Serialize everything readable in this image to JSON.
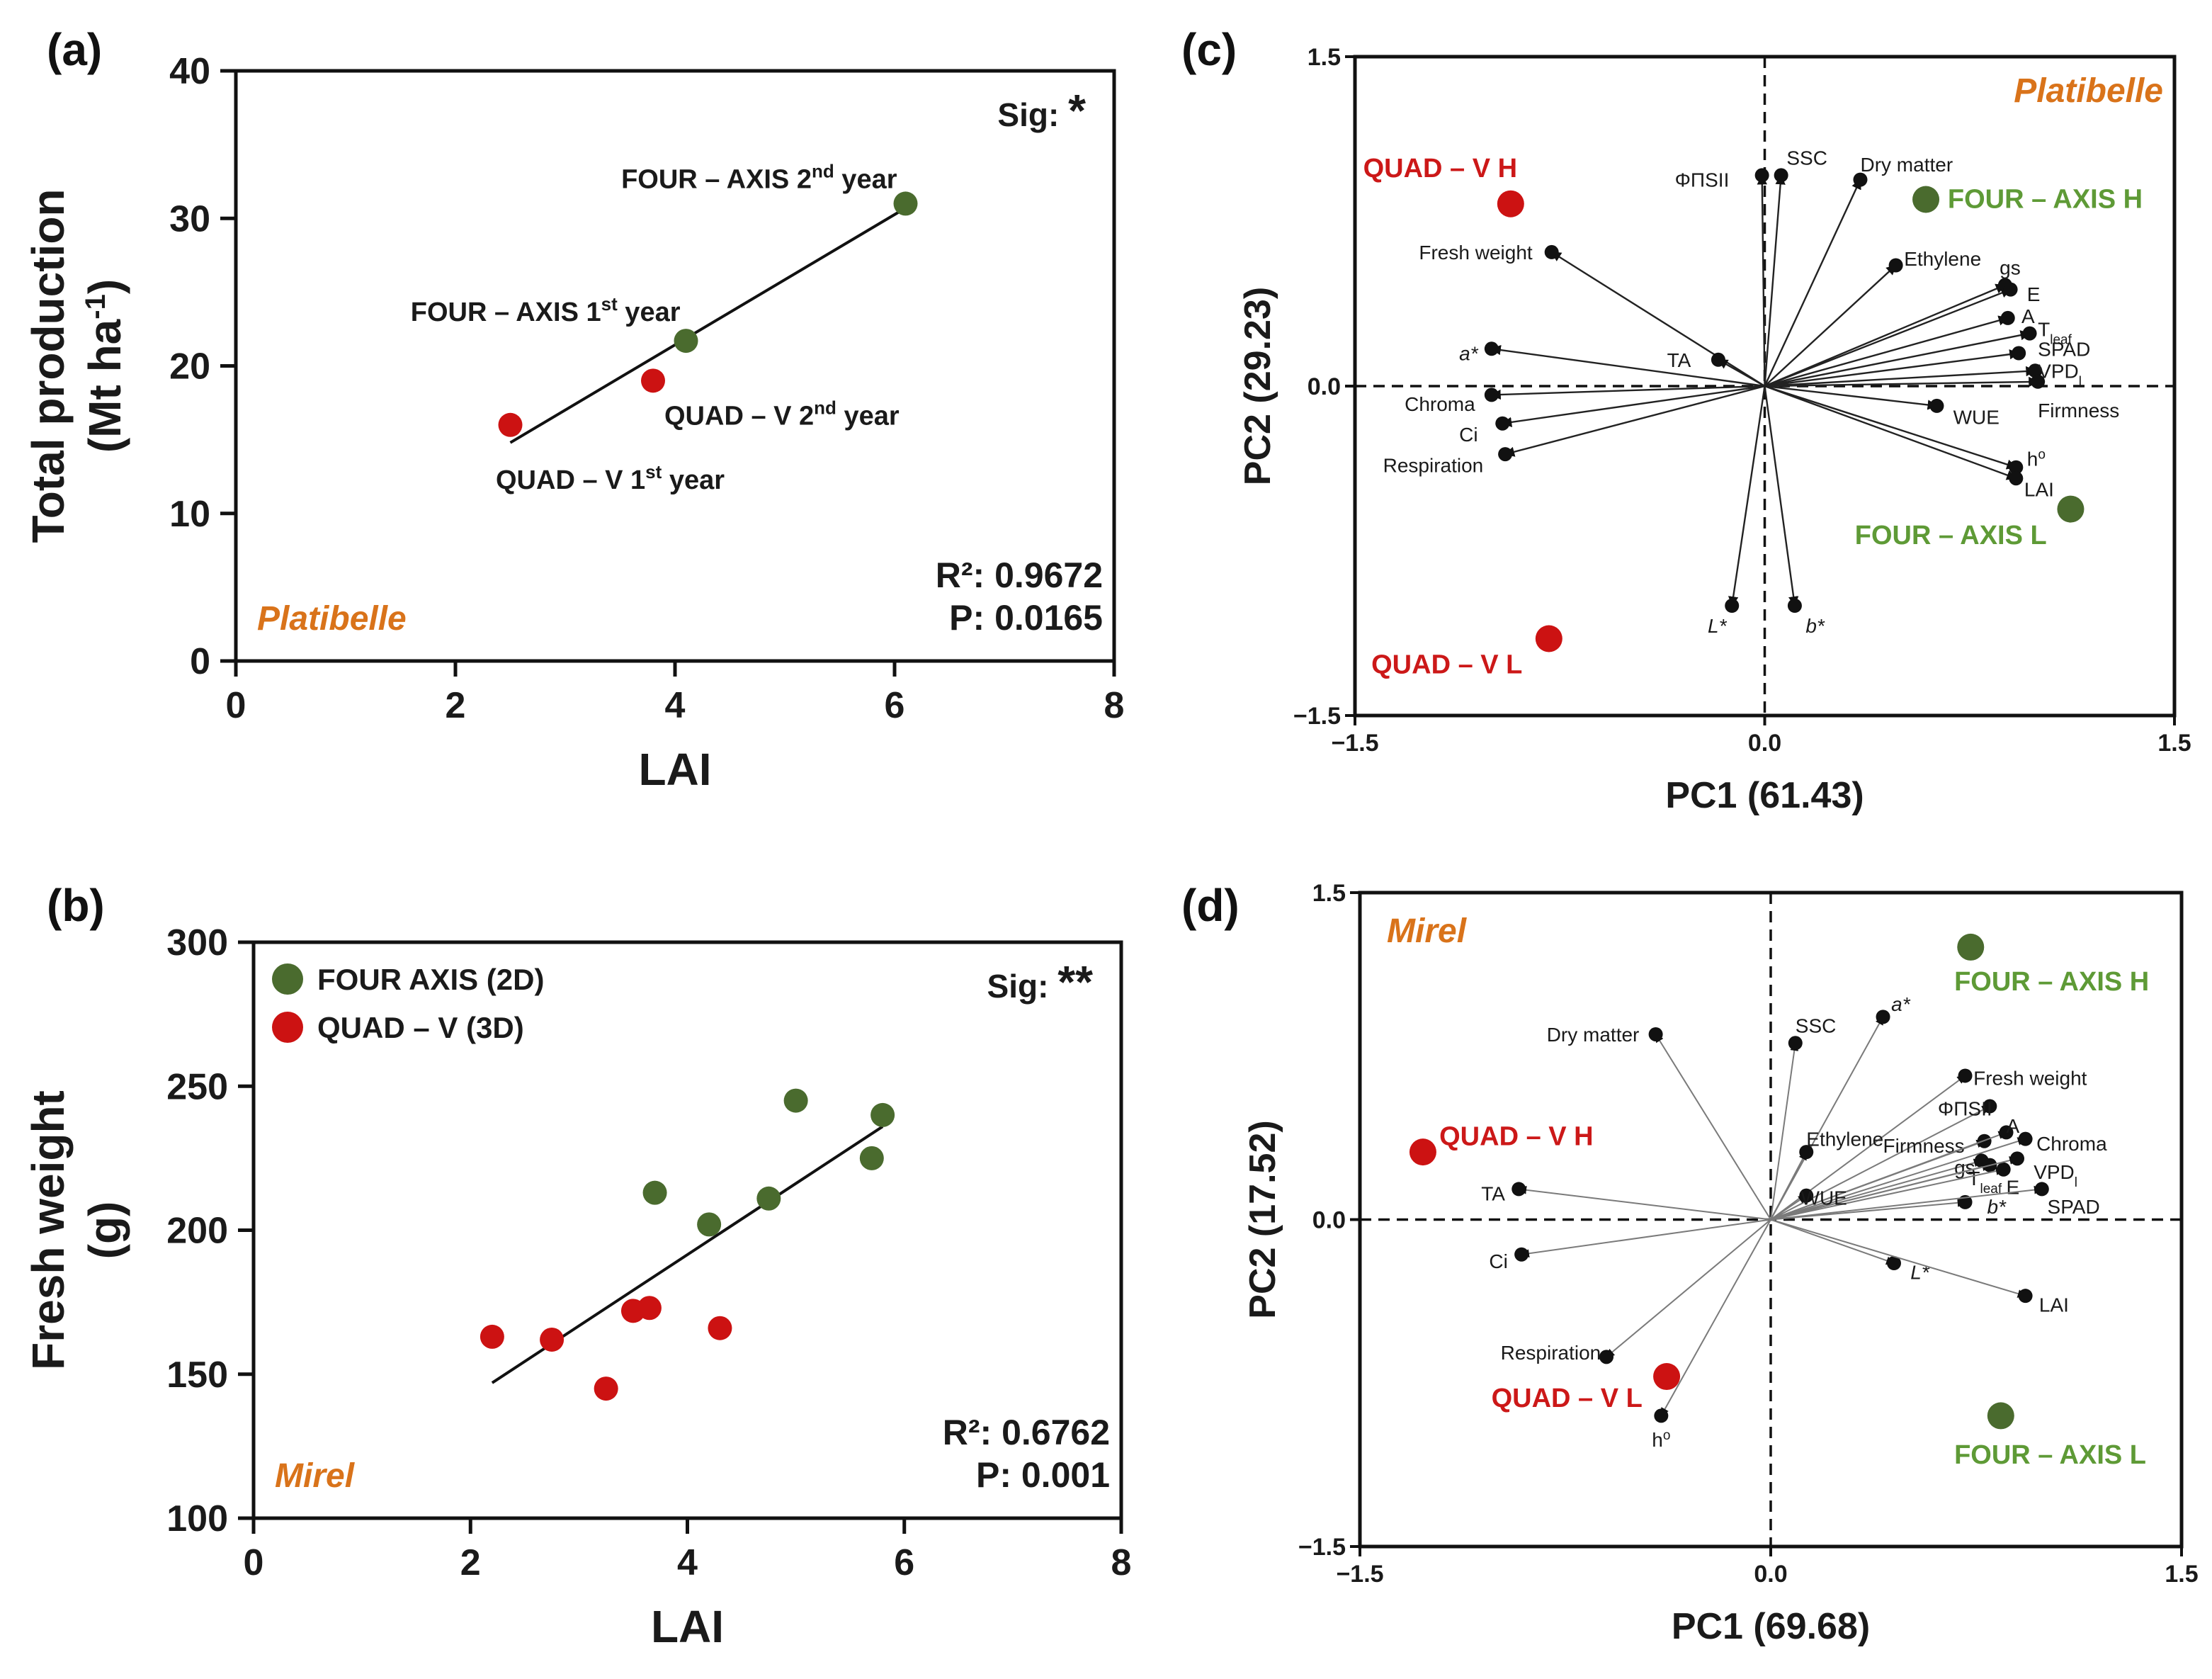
{
  "colors": {
    "green": "#4a6b2e",
    "red": "#cc1212",
    "green_label": "#5e9a36",
    "red_label": "#cc1818",
    "cultivar": "#d9731a",
    "ink": "#111111"
  },
  "chart_data": [
    {
      "id": "a",
      "type": "scatter",
      "label": "(a)",
      "xlabel": "LAI",
      "ylabel_line1": "Total production",
      "ylabel_line2": "(Mt ha",
      "ylabel_sup": "-1",
      "ylabel_close": ")",
      "xlim": [
        0,
        8
      ],
      "ylim": [
        0,
        40
      ],
      "xticks": [
        "0",
        "2",
        "4",
        "6",
        "8"
      ],
      "yticks": [
        "0",
        "10",
        "20",
        "30",
        "40"
      ],
      "points": [
        {
          "x": 2.5,
          "y": 16.0,
          "group": "red",
          "label": "QUAD – V 1",
          "sup": "st",
          "suffix": " year"
        },
        {
          "x": 3.8,
          "y": 19.0,
          "group": "red",
          "label": "QUAD – V 2",
          "sup": "nd",
          "suffix": " year"
        },
        {
          "x": 4.1,
          "y": 21.7,
          "group": "green",
          "label": "FOUR – AXIS 1",
          "sup": "st",
          "suffix": " year"
        },
        {
          "x": 6.1,
          "y": 31.0,
          "group": "green",
          "label": "FOUR – AXIS 2",
          "sup": "nd",
          "suffix": " year"
        }
      ],
      "fit": {
        "x1": 2.5,
        "y1": 14.8,
        "x2": 6.1,
        "y2": 30.7
      },
      "sig": "Sig: ",
      "sig_stars": "*",
      "r2": "R²: 0.9672",
      "p": "P: 0.0165",
      "cultivar": "Platibelle"
    },
    {
      "id": "b",
      "type": "scatter",
      "label": "(b)",
      "xlabel": "LAI",
      "ylabel_line1": "Fresh weight",
      "ylabel_line2": "(g)",
      "xlim": [
        0,
        8
      ],
      "ylim": [
        100,
        300
      ],
      "xticks": [
        "0",
        "2",
        "4",
        "6",
        "8"
      ],
      "yticks": [
        "100",
        "150",
        "200",
        "250",
        "300"
      ],
      "legend": [
        {
          "group": "green",
          "name": "FOUR AXIS (2D)"
        },
        {
          "group": "red",
          "name": "QUAD – V (3D)"
        }
      ],
      "series": [
        {
          "name": "FOUR AXIS (2D)",
          "group": "green",
          "x": [
            3.7,
            4.2,
            4.75,
            5.0,
            5.7,
            5.8
          ],
          "y": [
            213,
            202,
            211,
            245,
            225,
            240
          ]
        },
        {
          "name": "QUAD – V (3D)",
          "group": "red",
          "x": [
            2.2,
            2.75,
            3.25,
            3.5,
            3.65,
            4.3
          ],
          "y": [
            163,
            162,
            145,
            172,
            173,
            166
          ]
        }
      ],
      "fit": {
        "x1": 2.2,
        "y1": 147,
        "x2": 5.8,
        "y2": 236
      },
      "sig": "Sig: ",
      "sig_stars": "**",
      "r2": "R²: 0.6762",
      "p": "P: 0.001",
      "cultivar": "Mirel"
    },
    {
      "id": "c",
      "type": "biplot",
      "label": "(c)",
      "xlabel": "PC1 (61.43)",
      "ylabel": "PC2 (29.23)",
      "xlim": [
        -1.5,
        1.5
      ],
      "ylim": [
        -1.5,
        1.5
      ],
      "xticks": [
        "−1.5",
        "0.0",
        "1.5"
      ],
      "yticks": [
        "−1.5",
        "0.0",
        "1.5"
      ],
      "cultivar": "Platibelle",
      "groups": [
        {
          "name": "QUAD – V H",
          "x": -0.93,
          "y": 0.83,
          "group": "red",
          "lx": -1.47,
          "ly": 0.99,
          "anchor": "start"
        },
        {
          "name": "QUAD – V L",
          "x": -0.79,
          "y": -1.15,
          "group": "red",
          "lx": -1.44,
          "ly": -1.27,
          "anchor": "start"
        },
        {
          "name": "FOUR – AXIS H",
          "x": 0.59,
          "y": 0.85,
          "group": "green",
          "lx": 0.67,
          "ly": 0.85,
          "anchor": "start"
        },
        {
          "name": "FOUR – AXIS L",
          "x": 1.12,
          "y": -0.56,
          "group": "green",
          "lx": 0.33,
          "ly": -0.68,
          "anchor": "start"
        }
      ],
      "vars": [
        {
          "name": "ΦΠSII",
          "x": -0.01,
          "y": 0.96,
          "lx": -0.13,
          "ly": 0.94,
          "anchor": "end"
        },
        {
          "name": "SSC",
          "x": 0.06,
          "y": 0.96,
          "lx": 0.08,
          "ly": 1.04,
          "anchor": "start"
        },
        {
          "name": "Dry matter",
          "x": 0.35,
          "y": 0.94,
          "lx": 0.35,
          "ly": 1.01,
          "anchor": "start"
        },
        {
          "name": "Fresh weight",
          "x": -0.78,
          "y": 0.61,
          "lx": -0.85,
          "ly": 0.61,
          "anchor": "end"
        },
        {
          "name": "Ethylene",
          "x": 0.48,
          "y": 0.55,
          "lx": 0.51,
          "ly": 0.58,
          "anchor": "start"
        },
        {
          "name": "gs",
          "x": 0.88,
          "y": 0.46,
          "lx": 0.86,
          "ly": 0.54,
          "anchor": "start"
        },
        {
          "name": "E",
          "x": 0.9,
          "y": 0.44,
          "lx": 0.96,
          "ly": 0.42,
          "anchor": "start"
        },
        {
          "name": "A",
          "x": 0.89,
          "y": 0.31,
          "lx": 0.94,
          "ly": 0.32,
          "anchor": "start"
        },
        {
          "name": "T",
          "sub": "leaf",
          "x": 0.97,
          "y": 0.24,
          "lx": 1.0,
          "ly": 0.26,
          "anchor": "start"
        },
        {
          "name": "SPAD",
          "x": 0.93,
          "y": 0.15,
          "lx": 1.0,
          "ly": 0.17,
          "anchor": "start"
        },
        {
          "name": "VPD",
          "sub": "l",
          "x": 0.99,
          "y": 0.07,
          "lx": 1.0,
          "ly": 0.07,
          "anchor": "start"
        },
        {
          "name": "Firmness",
          "x": 1.0,
          "y": 0.02,
          "lx": 1.0,
          "ly": -0.11,
          "anchor": "start"
        },
        {
          "name": "WUE",
          "x": 0.63,
          "y": -0.09,
          "lx": 0.69,
          "ly": -0.14,
          "anchor": "start"
        },
        {
          "name": "TA",
          "x": -0.17,
          "y": 0.12,
          "lx": -0.27,
          "ly": 0.12,
          "anchor": "end"
        },
        {
          "name": "a*",
          "x": -1.0,
          "y": 0.17,
          "lx": -1.05,
          "ly": 0.15,
          "anchor": "end",
          "italic": true
        },
        {
          "name": "Chroma",
          "x": -1.0,
          "y": -0.04,
          "lx": -1.06,
          "ly": -0.08,
          "anchor": "end"
        },
        {
          "name": "Ci",
          "x": -0.96,
          "y": -0.17,
          "lx": -1.05,
          "ly": -0.22,
          "anchor": "end"
        },
        {
          "name": "Respiration",
          "x": -0.95,
          "y": -0.31,
          "lx": -1.03,
          "ly": -0.36,
          "anchor": "end"
        },
        {
          "name": "h",
          "sup": "o",
          "x": 0.92,
          "y": -0.37,
          "lx": 0.96,
          "ly": -0.33,
          "anchor": "start"
        },
        {
          "name": "LAI",
          "x": 0.92,
          "y": -0.42,
          "lx": 0.95,
          "ly": -0.47,
          "anchor": "start"
        },
        {
          "name": "L*",
          "x": -0.12,
          "y": -1.0,
          "lx": -0.14,
          "ly": -1.09,
          "anchor": "end",
          "italic": true
        },
        {
          "name": "b*",
          "x": 0.11,
          "y": -1.0,
          "lx": 0.15,
          "ly": -1.09,
          "anchor": "start",
          "italic": true
        }
      ]
    },
    {
      "id": "d",
      "type": "biplot",
      "label": "(d)",
      "xlabel": "PC1 (69.68)",
      "ylabel": "PC2 (17.52)",
      "xlim": [
        -1.5,
        1.5
      ],
      "ylim": [
        -1.5,
        1.5
      ],
      "xticks": [
        "−1.5",
        "0.0",
        "1.5"
      ],
      "yticks": [
        "−1.5",
        "0.0",
        "1.5"
      ],
      "cultivar": "Mirel",
      "groups": [
        {
          "name": "QUAD – V H",
          "x": -1.27,
          "y": 0.31,
          "group": "red",
          "lx": -1.21,
          "ly": 0.38,
          "anchor": "start"
        },
        {
          "name": "QUAD – V L",
          "x": -0.38,
          "y": -0.72,
          "group": "red",
          "lx": -1.02,
          "ly": -0.82,
          "anchor": "start"
        },
        {
          "name": "FOUR – AXIS H",
          "x": 0.73,
          "y": 1.25,
          "group": "green",
          "lx": 0.67,
          "ly": 1.09,
          "anchor": "start"
        },
        {
          "name": "FOUR – AXIS L",
          "x": 0.84,
          "y": -0.9,
          "group": "green",
          "lx": 0.67,
          "ly": -1.08,
          "anchor": "start"
        }
      ],
      "vars": [
        {
          "name": "Dry matter",
          "x": -0.42,
          "y": 0.85,
          "lx": -0.48,
          "ly": 0.85,
          "anchor": "end"
        },
        {
          "name": "SSC",
          "x": 0.09,
          "y": 0.81,
          "lx": 0.09,
          "ly": 0.89,
          "anchor": "start"
        },
        {
          "name": "a*",
          "x": 0.41,
          "y": 0.93,
          "lx": 0.44,
          "ly": 0.99,
          "anchor": "start",
          "italic": true
        },
        {
          "name": "Fresh weight",
          "x": 0.71,
          "y": 0.66,
          "lx": 0.74,
          "ly": 0.65,
          "anchor": "start"
        },
        {
          "name": "ΦΠSII",
          "x": 0.8,
          "y": 0.52,
          "lx": 0.61,
          "ly": 0.51,
          "anchor": "start"
        },
        {
          "name": "Ethylene",
          "x": 0.13,
          "y": 0.31,
          "lx": 0.13,
          "ly": 0.37,
          "anchor": "start"
        },
        {
          "name": "Firmness",
          "x": 0.78,
          "y": 0.36,
          "lx": 0.41,
          "ly": 0.34,
          "anchor": "start"
        },
        {
          "name": "A",
          "x": 0.86,
          "y": 0.4,
          "lx": 0.86,
          "ly": 0.43,
          "anchor": "start"
        },
        {
          "name": "Chroma",
          "x": 0.93,
          "y": 0.37,
          "lx": 0.97,
          "ly": 0.35,
          "anchor": "start"
        },
        {
          "name": "gs",
          "x": 0.77,
          "y": 0.27,
          "lx": 0.67,
          "ly": 0.24,
          "anchor": "start"
        },
        {
          "name": "T",
          "sub": "leaf",
          "x": 0.8,
          "y": 0.25,
          "lx": 0.72,
          "ly": 0.19,
          "anchor": "start"
        },
        {
          "name": "E",
          "x": 0.85,
          "y": 0.23,
          "lx": 0.86,
          "ly": 0.15,
          "anchor": "start"
        },
        {
          "name": "VPD",
          "sub": "l",
          "x": 0.9,
          "y": 0.28,
          "lx": 0.96,
          "ly": 0.22,
          "anchor": "start"
        },
        {
          "name": "b*",
          "x": 0.71,
          "y": 0.08,
          "lx": 0.79,
          "ly": 0.06,
          "anchor": "start",
          "italic": true
        },
        {
          "name": "SPAD",
          "x": 0.99,
          "y": 0.14,
          "lx": 1.01,
          "ly": 0.06,
          "anchor": "start"
        },
        {
          "name": "WUE",
          "x": 0.13,
          "y": 0.11,
          "lx": 0.11,
          "ly": 0.1,
          "anchor": "start"
        },
        {
          "name": "TA",
          "x": -0.92,
          "y": 0.14,
          "lx": -0.97,
          "ly": 0.12,
          "anchor": "end"
        },
        {
          "name": "Ci",
          "x": -0.91,
          "y": -0.16,
          "lx": -0.96,
          "ly": -0.19,
          "anchor": "end"
        },
        {
          "name": "Respiration",
          "x": -0.6,
          "y": -0.63,
          "lx": -0.62,
          "ly": -0.61,
          "anchor": "end"
        },
        {
          "name": "h",
          "sup": "o",
          "x": -0.4,
          "y": -0.9,
          "lx": -0.4,
          "ly": -1.01,
          "anchor": "middle"
        },
        {
          "name": "L*",
          "x": 0.45,
          "y": -0.2,
          "lx": 0.51,
          "ly": -0.24,
          "anchor": "start",
          "italic": true
        },
        {
          "name": "LAI",
          "x": 0.93,
          "y": -0.35,
          "lx": 0.98,
          "ly": -0.39,
          "anchor": "start"
        }
      ]
    }
  ]
}
